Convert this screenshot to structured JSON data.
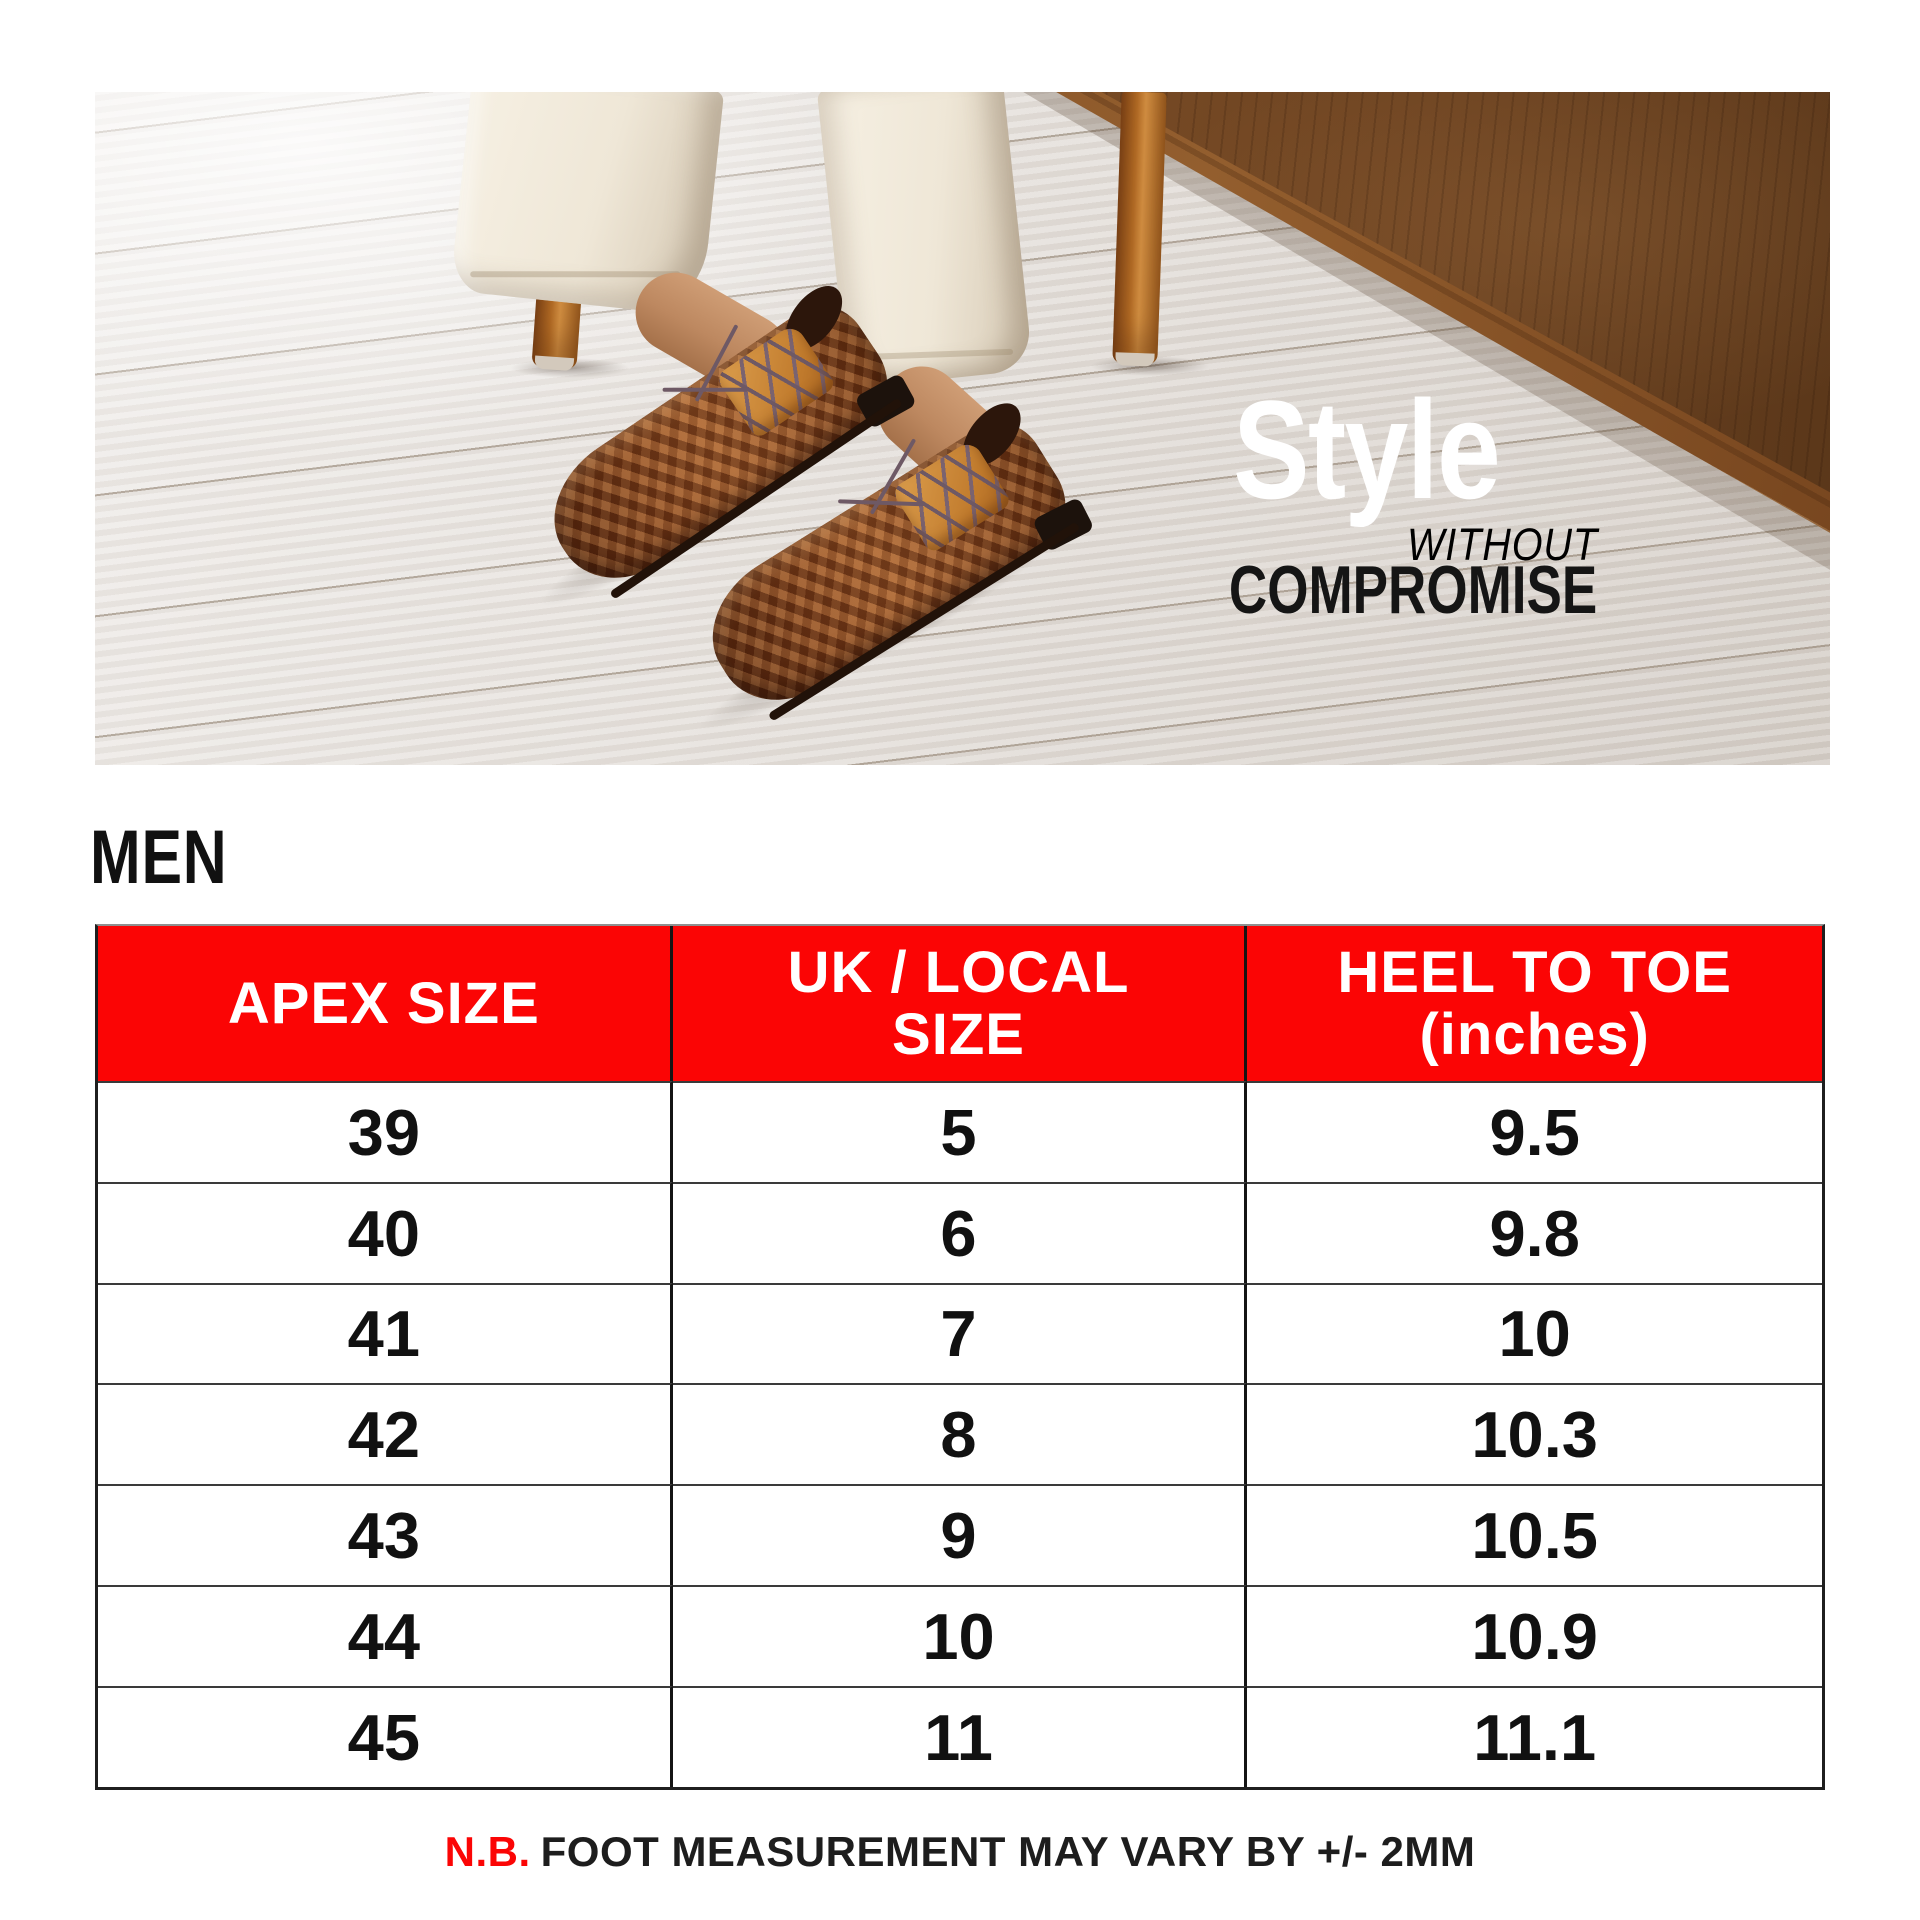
{
  "page": {
    "background": "#ffffff"
  },
  "colors": {
    "accent_red": "#fb0505",
    "headline_white": "#ffffff",
    "body_text": "#111111",
    "cabinet_wood_brown": "#6d4321",
    "shoe_leather_brown": "#8b4a22",
    "floor_light_gray": "#e4dfda"
  },
  "hero": {
    "headline": "Style",
    "subline": "WITHOUT",
    "tagline": "COMPROMISE"
  },
  "section": {
    "heading": "MEN"
  },
  "size_table": {
    "header": {
      "col1_line1": "APEX SIZE",
      "col2_line1": "UK / LOCAL",
      "col2_line2": "SIZE",
      "col3_line1": "HEEL TO TOE",
      "col3_line2": "(inches)"
    },
    "rows": [
      {
        "apex": "39",
        "uk": "5",
        "heel": "9.5"
      },
      {
        "apex": "40",
        "uk": "6",
        "heel": "9.8"
      },
      {
        "apex": "41",
        "uk": "7",
        "heel": "10"
      },
      {
        "apex": "42",
        "uk": "8",
        "heel": "10.3"
      },
      {
        "apex": "43",
        "uk": "9",
        "heel": "10.5"
      },
      {
        "apex": "44",
        "uk": "10",
        "heel": "10.9"
      },
      {
        "apex": "45",
        "uk": "11",
        "heel": "11.1"
      }
    ]
  },
  "note": {
    "prefix": "N.B.",
    "text": "FOOT MEASUREMENT MAY VARY BY +/- 2MM"
  }
}
